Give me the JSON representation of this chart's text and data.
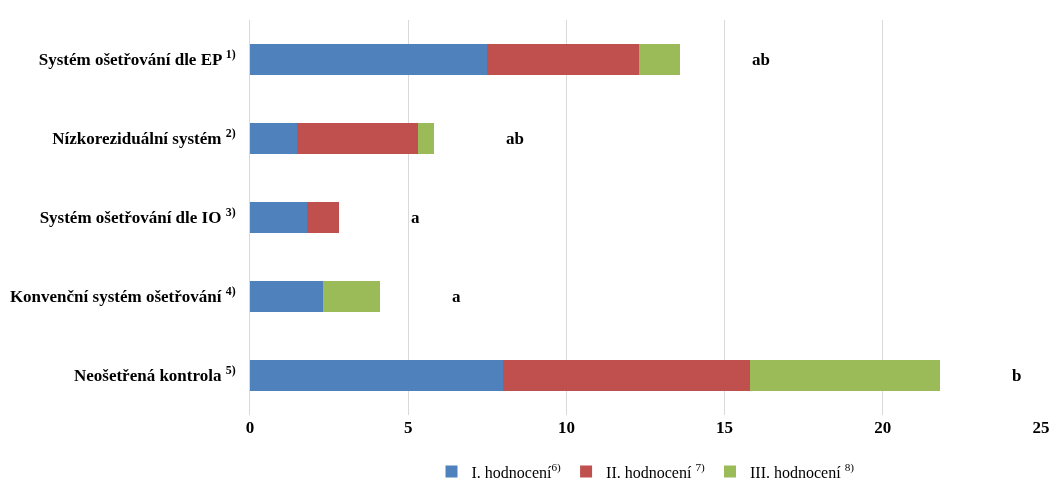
{
  "chart_data": {
    "type": "bar",
    "orientation": "horizontal",
    "stacked": true,
    "categories": [
      "Systém ošetřování dle EP $^{1)}$",
      "Nízkoreziduální systém $^{2)}$",
      "Systém ošetřování dle IO $^{3)}$",
      "Konvenční systém ošetřování $^{4)}$",
      "Neošetřená kontrola $^{5)}$"
    ],
    "series": [
      {
        "name": "I. hodnocení$^{6)}$",
        "color": "#4f81bd",
        "values": [
          7.5,
          1.5,
          1.8,
          2.3,
          8.0
        ]
      },
      {
        "name": "II. hodnocení $^{7)}$",
        "color": "#c0504d",
        "values": [
          4.8,
          3.8,
          1.0,
          0,
          7.8
        ]
      },
      {
        "name": "III. hodnocení $^{8)}$",
        "color": "#9bbb59",
        "values": [
          1.3,
          0.5,
          0,
          1.8,
          6.0
        ]
      }
    ],
    "annotations": [
      "ab",
      "ab",
      "a",
      "a",
      "b"
    ],
    "xlim": [
      0,
      25
    ],
    "xticks": [
      0,
      5,
      10,
      15,
      20,
      25
    ],
    "grid": "x",
    "legend": "bottom"
  }
}
